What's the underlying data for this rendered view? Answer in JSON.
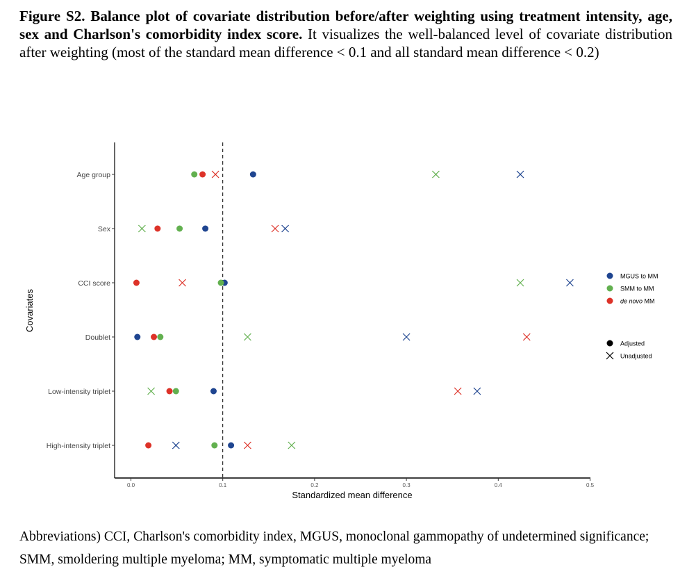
{
  "caption": {
    "title": "Figure S2. Balance plot of covariate distribution before/after weighting using treatment intensity, age, sex and Charlson's comorbidity index score.",
    "body": " It visualizes the well-balanced level of covariate distribution after weighting (most of the standard mean difference < 0.1 and all standard mean difference < 0.2)"
  },
  "abbreviations": "Abbreviations) CCI, Charlson's comorbidity index, MGUS, monoclonal gammopathy of undetermined significance; SMM, smoldering multiple myeloma; MM, symptomatic multiple myeloma",
  "chart_data": {
    "type": "scatter",
    "xlabel": "Standardized mean difference",
    "ylabel": "Covariates",
    "xlim": [
      -0.017,
      0.5
    ],
    "xticks": [
      "0.0",
      "0.1",
      "0.2",
      "0.3",
      "0.4",
      "0.5"
    ],
    "xtick_values": [
      0,
      0.1,
      0.2,
      0.3,
      0.4,
      0.5
    ],
    "reference_line": 0.1,
    "categories": [
      "Age group",
      "Sex",
      "CCI score",
      "Doublet",
      "Low-intensity triplet",
      "High-intensity triplet"
    ],
    "series": [
      {
        "name": "MGUS to MM",
        "color": "#1f4590",
        "adjusted": [
          0.133,
          0.081,
          0.102,
          0.007,
          0.09,
          0.109
        ],
        "unadjusted": [
          0.424,
          0.168,
          0.478,
          0.3,
          0.377,
          0.049
        ]
      },
      {
        "name": "SMM to MM",
        "color": "#62b04f",
        "adjusted": [
          0.069,
          0.053,
          0.098,
          0.032,
          0.049,
          0.091
        ],
        "unadjusted": [
          0.332,
          0.012,
          0.424,
          0.127,
          0.022,
          0.175
        ]
      },
      {
        "name": "de novo MM",
        "name_italic": "de novo",
        "name_rest": " MM",
        "color": "#dd3228",
        "adjusted": [
          0.078,
          0.029,
          0.006,
          0.025,
          0.042,
          0.019
        ],
        "unadjusted": [
          0.092,
          0.157,
          0.056,
          0.431,
          0.356,
          0.127
        ]
      }
    ],
    "shape_legend": [
      "Adjusted",
      "Unadjusted"
    ],
    "grid": false,
    "legend_position": "right"
  }
}
